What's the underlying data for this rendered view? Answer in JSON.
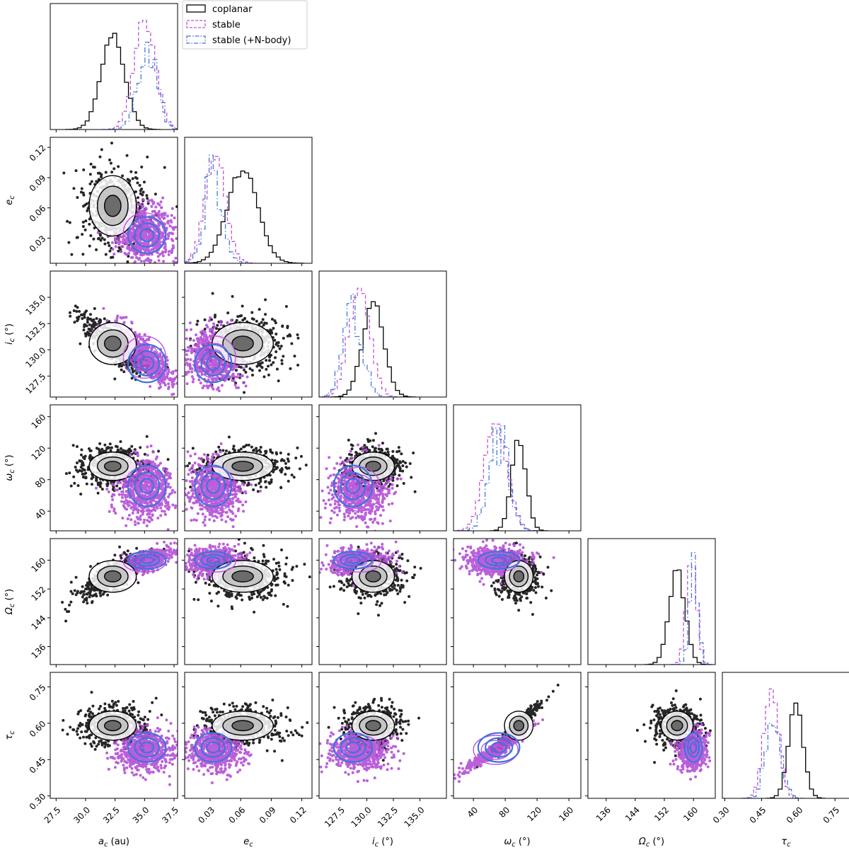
{
  "chart_data": {
    "type": "corner",
    "title": "",
    "parameters": [
      {
        "key": "a",
        "label": "a_c (au)",
        "sym": "a",
        "unit": "(au)",
        "lim": [
          27.0,
          37.8
        ],
        "ticks": [
          27.5,
          30.0,
          32.5,
          35.0,
          37.5
        ],
        "tick_labels": [
          "27.5",
          "30.0",
          "32.5",
          "35.0",
          "37.5"
        ]
      },
      {
        "key": "e",
        "label": "e_c",
        "sym": "e",
        "unit": "",
        "lim": [
          0.005,
          0.13
        ],
        "ticks": [
          0.03,
          0.06,
          0.09,
          0.12
        ],
        "tick_labels": [
          "0.03",
          "0.06",
          "0.09",
          "0.12"
        ]
      },
      {
        "key": "i",
        "label": "i_c (°)",
        "sym": "i",
        "unit": "(°)",
        "lim": [
          125.5,
          137.5
        ],
        "ticks": [
          127.5,
          130.0,
          132.5,
          135.0
        ],
        "tick_labels": [
          "127.5",
          "130.0",
          "132.5",
          "135.0"
        ]
      },
      {
        "key": "w",
        "label": "ω_c (°)",
        "sym": "ω",
        "unit": "(°)",
        "lim": [
          15,
          175
        ],
        "ticks": [
          40,
          80,
          120,
          160
        ],
        "tick_labels": [
          "40",
          "80",
          "120",
          "160"
        ]
      },
      {
        "key": "O",
        "label": "Ω_c (°)",
        "sym": "Ω",
        "unit": "(°)",
        "lim": [
          131,
          166
        ],
        "ticks": [
          136,
          144,
          152,
          160
        ],
        "tick_labels": [
          "136",
          "144",
          "152",
          "160"
        ]
      },
      {
        "key": "tau",
        "label": "τ_c",
        "sym": "τ",
        "unit": "",
        "lim": [
          0.29,
          0.81
        ],
        "ticks": [
          0.3,
          0.45,
          0.6,
          0.75
        ],
        "tick_labels": [
          "0.30",
          "0.45",
          "0.60",
          "0.75"
        ]
      }
    ],
    "series": [
      {
        "name": "coplanar",
        "color": "#000000",
        "style": "solid",
        "centers": {
          "a": 32.3,
          "e": 0.062,
          "i": 130.6,
          "w": 97,
          "O": 155.5,
          "tau": 0.59
        },
        "spreads": {
          "a": 1.0,
          "e": 0.015,
          "i": 1.0,
          "w": 9,
          "O": 2.2,
          "tau": 0.03
        }
      },
      {
        "name": "stable",
        "color": "#bb55dd",
        "style": "dashed",
        "centers": {
          "a": 35.0,
          "e": 0.035,
          "i": 129.3,
          "w": 68,
          "O": 159.5,
          "tau": 0.49
        },
        "spreads": {
          "a": 0.9,
          "e": 0.01,
          "i": 1.0,
          "w": 14,
          "O": 1.4,
          "tau": 0.03
        }
      },
      {
        "name": "stable (+N-body)",
        "color": "#4477dd",
        "style": "dashdot",
        "centers": {
          "a": 35.2,
          "e": 0.033,
          "i": 128.7,
          "w": 72,
          "O": 160.0,
          "tau": 0.5
        },
        "spreads": {
          "a": 0.8,
          "e": 0.009,
          "i": 0.9,
          "w": 13,
          "O": 1.2,
          "tau": 0.03
        }
      }
    ],
    "legend": {
      "position": "top-left",
      "labels": [
        "coplanar",
        "stable",
        "stable (+N-body)"
      ]
    },
    "grid": false
  }
}
